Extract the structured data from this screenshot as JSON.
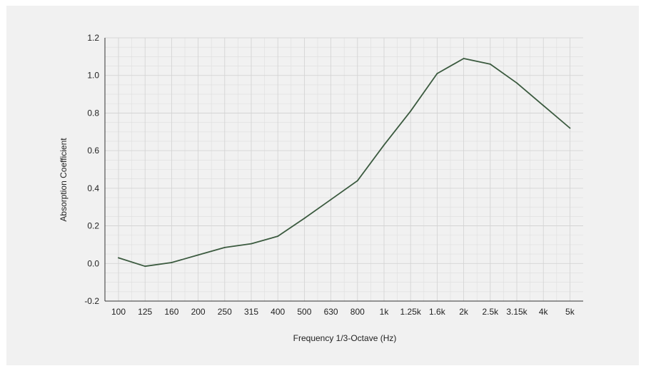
{
  "chart_data": {
    "type": "line",
    "title": "",
    "xlabel": "Frequency 1/3-Octave (Hz)",
    "ylabel": "Absorption Coefficient",
    "categories": [
      "100",
      "125",
      "160",
      "200",
      "250",
      "315",
      "400",
      "500",
      "630",
      "800",
      "1k",
      "1.25k",
      "1.6k",
      "2k",
      "2.5k",
      "3.15k",
      "4k",
      "5k"
    ],
    "series": [
      {
        "values": [
          0.03,
          -0.015,
          0.005,
          0.045,
          0.085,
          0.105,
          0.145,
          0.24,
          0.34,
          0.44,
          0.63,
          0.81,
          1.01,
          1.09,
          1.06,
          0.96,
          0.84,
          0.72
        ]
      }
    ],
    "yticks": [
      "1.2",
      "1.0",
      "0.8",
      "0.6",
      "0.4",
      "0.2",
      "0.0",
      "-0.2"
    ],
    "ylim": [
      -0.2,
      1.2
    ],
    "grid": true,
    "colors": {
      "line": "#3b5a3f",
      "grid": "#dedede",
      "axis": "#333333",
      "background": "#f1f1f1"
    }
  }
}
